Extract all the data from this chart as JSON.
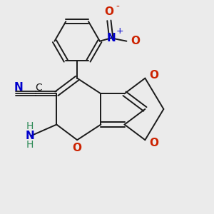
{
  "bg_color": "#ebebeb",
  "bond_color": "#1a1a1a",
  "N_color": "#0000cc",
  "O_color": "#cc2200",
  "C_color": "#1a1a1a",
  "NH_color": "#2e8b57",
  "figsize": [
    3.0,
    3.0
  ],
  "dpi": 100,
  "xlim": [
    0,
    10
  ],
  "ylim": [
    0,
    10
  ]
}
